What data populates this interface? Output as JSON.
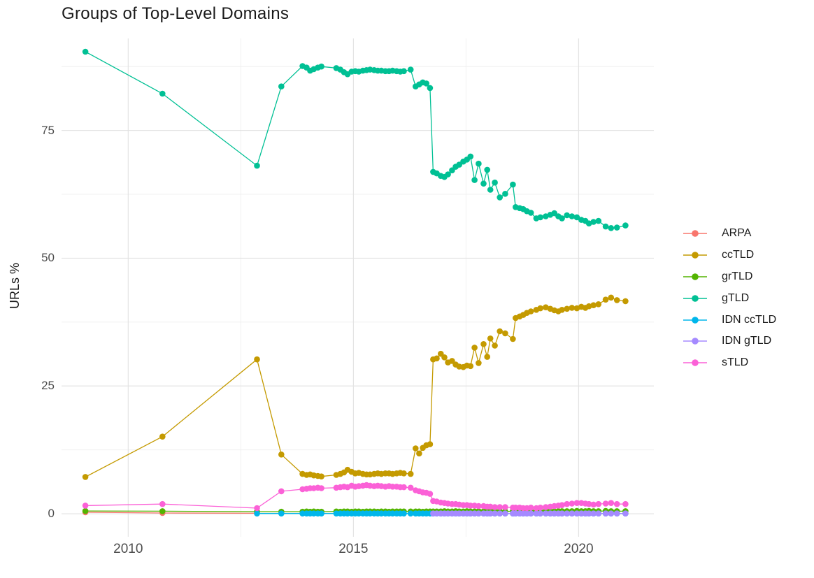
{
  "title": "Groups of Top-Level Domains",
  "y_axis_title": "URLs %",
  "colors": {
    "background": "#FFFFFF",
    "grid_major": "#E3E3E3",
    "grid_minor": "#F0F0F0",
    "axis_text": "#4D4D4D",
    "text": "#1A1A1A"
  },
  "chart_data": {
    "type": "line",
    "title": "Groups of Top-Level Domains",
    "xlabel": "",
    "ylabel": "URLs %",
    "legend_position": "right",
    "grid": true,
    "xlim": [
      2008.52,
      2021.67
    ],
    "ylim": [
      -4.5,
      93.0
    ],
    "x_ticks": [
      2010,
      2015,
      2020
    ],
    "x_tick_labels": [
      "2010",
      "2015",
      "2020"
    ],
    "x_minor": [
      2012.5,
      2017.5
    ],
    "y_ticks": [
      0,
      25,
      50,
      75
    ],
    "y_tick_labels": [
      "0",
      "25",
      "50",
      "75"
    ],
    "y_minor": [
      12.5,
      37.5,
      62.5,
      87.5
    ],
    "x": [
      2009.05,
      2010.76,
      2012.86,
      2013.4,
      2013.87,
      2013.96,
      2014.04,
      2014.12,
      2014.21,
      2014.29,
      2014.62,
      2014.71,
      2014.79,
      2014.87,
      2014.96,
      2015.04,
      2015.12,
      2015.21,
      2015.29,
      2015.37,
      2015.46,
      2015.54,
      2015.62,
      2015.71,
      2015.79,
      2015.87,
      2015.96,
      2016.04,
      2016.12,
      2016.27,
      2016.38,
      2016.46,
      2016.54,
      2016.62,
      2016.7,
      2016.77,
      2016.85,
      2016.94,
      2017.02,
      2017.1,
      2017.19,
      2017.27,
      2017.35,
      2017.44,
      2017.52,
      2017.6,
      2017.69,
      2017.78,
      2017.89,
      2017.97,
      2018.04,
      2018.14,
      2018.25,
      2018.37,
      2018.54,
      2018.6,
      2018.69,
      2018.77,
      2018.85,
      2018.94,
      2019.06,
      2019.15,
      2019.27,
      2019.37,
      2019.46,
      2019.55,
      2019.63,
      2019.74,
      2019.85,
      2019.96,
      2020.06,
      2020.15,
      2020.23,
      2020.33,
      2020.44,
      2020.6,
      2020.72,
      2020.85,
      2021.04
    ],
    "series": [
      {
        "name": "ARPA",
        "color": "#F8766D",
        "values": [
          0.3,
          0.15,
          0.1
        ]
      },
      {
        "name": "ccTLD",
        "color": "#C49A00",
        "values": [
          7.2,
          15.1,
          30.2,
          11.6,
          7.8,
          7.6,
          7.7,
          7.5,
          7.4,
          7.3,
          7.6,
          7.8,
          8.1,
          8.6,
          8.2,
          7.9,
          8.0,
          7.8,
          7.7,
          7.7,
          7.8,
          7.9,
          7.8,
          7.9,
          7.9,
          7.8,
          7.9,
          8.0,
          7.9,
          7.8,
          12.8,
          11.8,
          12.9,
          13.4,
          13.6,
          30.2,
          30.4,
          31.3,
          30.6,
          29.6,
          29.9,
          29.2,
          28.8,
          28.7,
          29.0,
          28.9,
          32.5,
          29.5,
          33.2,
          30.7,
          34.3,
          32.9,
          35.7,
          35.3,
          34.2,
          38.3,
          38.6,
          38.9,
          39.3,
          39.6,
          39.9,
          40.2,
          40.4,
          40.1,
          39.8,
          39.6,
          39.9,
          40.1,
          40.3,
          40.2,
          40.5,
          40.3,
          40.6,
          40.8,
          41.0,
          41.9,
          42.3,
          41.8,
          41.6
        ]
      },
      {
        "name": "grTLD",
        "color": "#53B400",
        "values": [
          0.55,
          0.5,
          0.4,
          0.4,
          0.4,
          0.45,
          0.4,
          0.45,
          0.4,
          0.4,
          0.45,
          0.4,
          0.45,
          0.45,
          0.4,
          0.45,
          0.45,
          0.4,
          0.45,
          0.45,
          0.45,
          0.4,
          0.45,
          0.45,
          0.4,
          0.45,
          0.45,
          0.45,
          0.45,
          0.45,
          0.45,
          0.45,
          0.4,
          0.45,
          0.45,
          0.45,
          0.45,
          0.45,
          0.5,
          0.45,
          0.45,
          0.5,
          0.45,
          0.45,
          0.5,
          0.45,
          0.45,
          0.5,
          0.45,
          0.45,
          0.5,
          0.45,
          0.5,
          0.45,
          0.5,
          0.5,
          0.5,
          0.45,
          0.5,
          0.5,
          0.45,
          0.5,
          0.5,
          0.5,
          0.45,
          0.5,
          0.5,
          0.5,
          0.5,
          0.55,
          0.5,
          0.5,
          0.55,
          0.5,
          0.5,
          0.55,
          0.5,
          0.5,
          0.5
        ]
      },
      {
        "name": "gTLD",
        "color": "#00C094",
        "values": [
          90.4,
          82.2,
          68.1,
          83.6,
          87.6,
          87.3,
          86.7,
          87.0,
          87.3,
          87.5,
          87.2,
          86.9,
          86.4,
          86.0,
          86.5,
          86.6,
          86.5,
          86.7,
          86.8,
          86.9,
          86.8,
          86.7,
          86.7,
          86.6,
          86.6,
          86.7,
          86.6,
          86.5,
          86.6,
          86.9,
          83.6,
          84.0,
          84.4,
          84.2,
          83.3,
          66.9,
          66.6,
          66.1,
          65.9,
          66.4,
          67.2,
          67.9,
          68.3,
          68.9,
          69.3,
          69.9,
          65.3,
          68.5,
          64.6,
          67.3,
          63.4,
          64.8,
          61.9,
          62.6,
          64.4,
          60.0,
          59.8,
          59.6,
          59.2,
          58.9,
          57.8,
          58.0,
          58.2,
          58.5,
          58.8,
          58.2,
          57.8,
          58.4,
          58.2,
          58.0,
          57.5,
          57.3,
          56.8,
          57.1,
          57.3,
          56.2,
          55.9,
          56.0,
          56.4
        ]
      },
      {
        "name": "IDN ccTLD",
        "color": "#00B6EB",
        "values": [
          null,
          null,
          0.05,
          0.05,
          0.05,
          0.05,
          0.05,
          0.05,
          0.05,
          0.05,
          0.05,
          0.05,
          0.05,
          0.05,
          0.05,
          0.05,
          0.05,
          0.05,
          0.05,
          0.05,
          0.05,
          0.05,
          0.05,
          0.05,
          0.05,
          0.05,
          0.05,
          0.05,
          0.05,
          0.05,
          0.05,
          0.05,
          0.05,
          0.05,
          0.05,
          0.05,
          0.05,
          0.05,
          0.05,
          0.05,
          0.05,
          0.05,
          0.05,
          0.05,
          0.05,
          0.05,
          0.05,
          0.05,
          0.05,
          0.05,
          0.05,
          0.05,
          0.05,
          0.05,
          0.05,
          0.05,
          0.05,
          0.05,
          0.05,
          0.05,
          0.05,
          0.05,
          0.05,
          0.05,
          0.05,
          0.05,
          0.05,
          0.05,
          0.05,
          0.05,
          0.05,
          0.05,
          0.05,
          0.05,
          0.05,
          0.05,
          0.05,
          0.05,
          0.05
        ]
      },
      {
        "name": "IDN gTLD",
        "color": "#A58AFF",
        "values": [
          null,
          null,
          null,
          null,
          null,
          null,
          null,
          null,
          null,
          null,
          null,
          null,
          null,
          null,
          null,
          null,
          null,
          null,
          null,
          null,
          null,
          null,
          null,
          null,
          null,
          null,
          null,
          null,
          null,
          null,
          null,
          null,
          null,
          null,
          null,
          0.05,
          0.05,
          0.05,
          0.05,
          0.05,
          0.05,
          0.05,
          0.05,
          0.05,
          0.05,
          0.05,
          0.05,
          0.05,
          0.05,
          0.05,
          0.05,
          0.05,
          0.05,
          0.05,
          0.05,
          0.05,
          0.05,
          0.05,
          0.05,
          0.05,
          0.05,
          0.05,
          0.05,
          0.05,
          0.05,
          0.05,
          0.05,
          0.05,
          0.05,
          0.05,
          0.05,
          0.05,
          0.05,
          0.05,
          0.05,
          0.05,
          0.05,
          0.05,
          0.05
        ]
      },
      {
        "name": "sTLD",
        "color": "#FB61D7",
        "values": [
          1.6,
          1.9,
          1.1,
          4.4,
          4.8,
          4.9,
          5.0,
          5.0,
          5.1,
          5.0,
          5.1,
          5.2,
          5.3,
          5.2,
          5.5,
          5.3,
          5.4,
          5.5,
          5.6,
          5.5,
          5.4,
          5.5,
          5.4,
          5.3,
          5.4,
          5.3,
          5.3,
          5.2,
          5.2,
          5.1,
          4.6,
          4.4,
          4.2,
          4.1,
          3.9,
          2.5,
          2.4,
          2.2,
          2.1,
          2.0,
          1.9,
          1.9,
          1.8,
          1.7,
          1.7,
          1.6,
          1.6,
          1.5,
          1.5,
          1.4,
          1.4,
          1.3,
          1.3,
          1.3,
          1.2,
          1.2,
          1.2,
          1.1,
          1.1,
          1.2,
          1.1,
          1.2,
          1.3,
          1.4,
          1.5,
          1.6,
          1.7,
          1.9,
          2.0,
          2.1,
          2.1,
          2.0,
          1.9,
          1.8,
          1.9,
          2.0,
          2.1,
          1.9,
          1.9
        ]
      }
    ]
  }
}
